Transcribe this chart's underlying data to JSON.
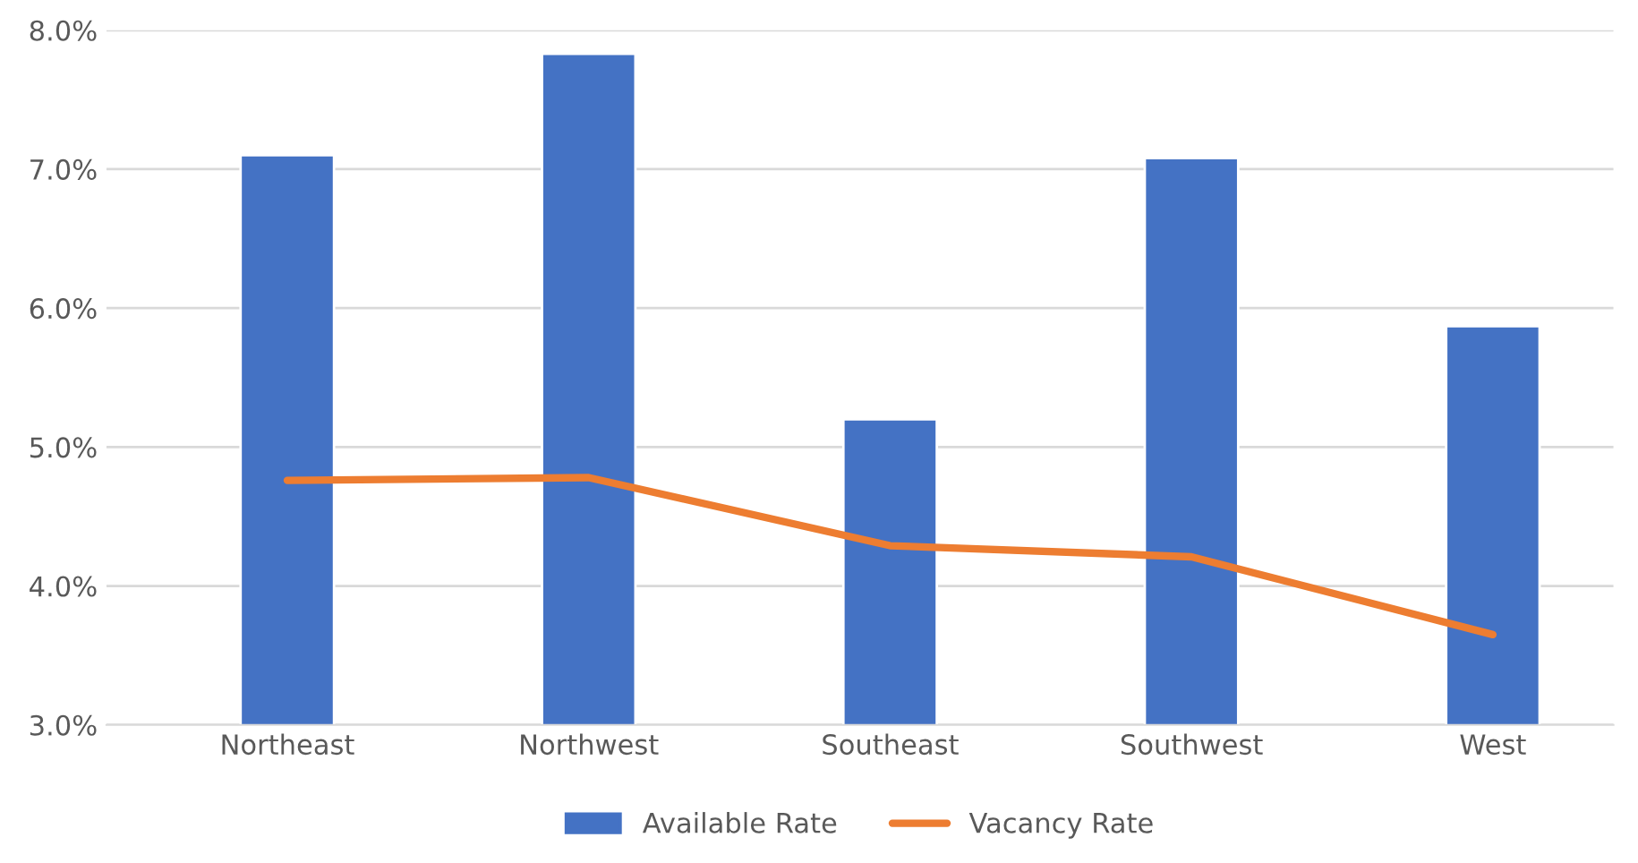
{
  "chart_data": {
    "type": "bar",
    "categories": [
      "Northeast",
      "Northwest",
      "Southeast",
      "Southwest",
      "West"
    ],
    "series": [
      {
        "name": "Available Rate",
        "color": "#4472c4",
        "values": [
          7.1,
          7.83,
          5.2,
          7.08,
          5.87
        ]
      },
      {
        "name": "Vacancy Rate",
        "color": "#ed7d31",
        "type": "line",
        "values": [
          4.76,
          4.78,
          4.29,
          4.21,
          3.65
        ]
      }
    ],
    "ylim": [
      3,
      8
    ],
    "yticks": [
      {
        "value": 3,
        "label": "3.0%"
      },
      {
        "value": 4,
        "label": "4.0%"
      },
      {
        "value": 5,
        "label": "5.0%"
      },
      {
        "value": 6,
        "label": "6.0%"
      },
      {
        "value": 7,
        "label": "7.0%"
      },
      {
        "value": 8,
        "label": "8.0%"
      }
    ],
    "grid": "y",
    "legend": "bottom",
    "marker": "none",
    "line_style": "solid"
  }
}
